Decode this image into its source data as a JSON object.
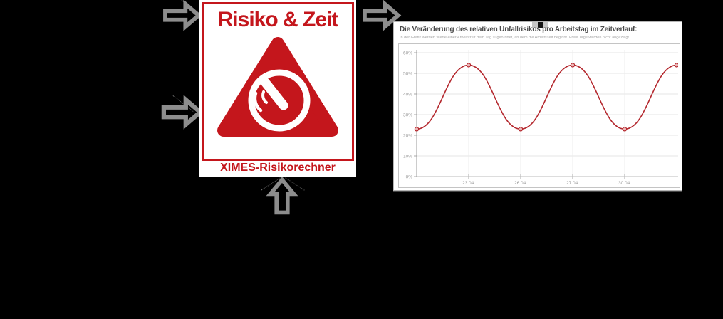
{
  "page": {
    "background_color": "#000000"
  },
  "logo_card": {
    "title": "Risiko & Zeit",
    "caption": "XIMES-Risikorechner",
    "accent_color": "#c4161c",
    "icon": "warning-triangle-clock-icon"
  },
  "arrows": {
    "color": "#8d8d8d",
    "top_left": "block-arrow-right",
    "top_right": "block-arrow-right",
    "mid_left": "block-arrow-right",
    "bottom": "block-arrow-up"
  },
  "chart_panel": {
    "title": "Die Veränderung des relativen Unfallrisikos pro Arbeitstag im Zeitverlauf:",
    "subtitle": "In der Grafik werden Werte einer Arbeitszeit dem Tag zugeordnet, an dem die Arbeitszeit beginnt. Freie Tage werden nicht angezeigt."
  },
  "chart_data": {
    "type": "line",
    "title": "Die Veränderung des relativen Unfallrisikos pro Arbeitstag im Zeitverlauf:",
    "subtitle": "In der Grafik werden Werte einer Arbeitszeit dem Tag zugeordnet, an dem die Arbeitszeit beginnt. Freie Tage werden nicht angezeigt.",
    "x_tick_labels": [
      "23.04.",
      "26.04.",
      "27.04.",
      "30.04."
    ],
    "x_tick_indices": [
      1,
      2,
      3,
      4
    ],
    "y_tick_labels": [
      "0%",
      "10%",
      "20%",
      "30%",
      "40%",
      "50%",
      "60%"
    ],
    "ylim": [
      0,
      60
    ],
    "grid": true,
    "legend_position": "none",
    "series": [
      {
        "color": "#b4282e",
        "marker_fill": "#edb9b9",
        "x_indices": [
          0,
          1,
          2,
          3,
          4,
          5
        ],
        "values_pct": [
          23,
          54,
          23,
          54,
          23,
          54
        ]
      }
    ]
  }
}
